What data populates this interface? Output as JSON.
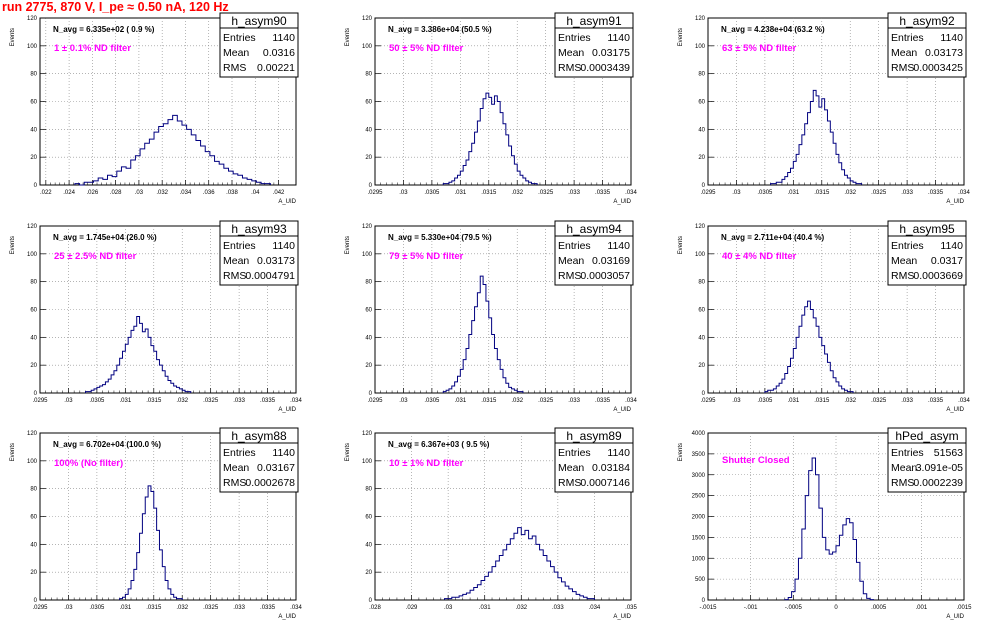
{
  "title": "run 2775,   870 V, I_pe ≈ 0.50 nA, 120 Hz",
  "colors": {
    "title": "#ff0000",
    "histogram": "#000080",
    "filter_text": "#ff00ff",
    "grid": "#888888"
  },
  "stat_labels": {
    "entries": "Entries",
    "mean": "Mean",
    "rms": "RMS"
  },
  "y_axis_title": "Events",
  "x_axis_title": "A_UID",
  "chart_data": [
    {
      "type": "histogram",
      "name": "h_asym90",
      "navg": "N_avg = 6.335e+02 ( 0.9 %)",
      "filter": "1 ± 0.1% ND filter",
      "entries": "1140",
      "mean": "0.0316",
      "rms": "0.00221",
      "xlim": [
        0.0215,
        0.0435
      ],
      "ylim": [
        0,
        120
      ],
      "xticks": [
        0.022,
        0.024,
        0.026,
        0.028,
        0.03,
        0.032,
        0.034,
        0.036,
        0.038,
        0.04,
        0.042
      ],
      "yticks": [
        0,
        20,
        40,
        60,
        80,
        100,
        120
      ],
      "bins": {
        "start": 0.0245,
        "width": 0.0004,
        "counts": [
          1,
          0,
          2,
          2,
          3,
          5,
          4,
          7,
          6,
          10,
          13,
          12,
          18,
          21,
          26,
          30,
          33,
          38,
          42,
          44,
          47,
          50,
          46,
          43,
          40,
          36,
          32,
          28,
          24,
          21,
          17,
          15,
          12,
          10,
          8,
          7,
          5,
          4,
          3,
          2,
          1,
          1
        ]
      }
    },
    {
      "type": "histogram",
      "name": "h_asym91",
      "navg": "N_avg = 3.386e+04 (50.5 %)",
      "filter": "50 ± 5% ND filter",
      "entries": "1140",
      "mean": "0.03175",
      "rms": "0.0003439",
      "xlim": [
        0.0295,
        0.034
      ],
      "ylim": [
        0,
        120
      ],
      "xticks": [
        0.0295,
        0.03,
        0.0305,
        0.031,
        0.0315,
        0.032,
        0.0325,
        0.033,
        0.0335,
        0.034
      ],
      "yticks": [
        0,
        20,
        40,
        60,
        80,
        100,
        120
      ],
      "bins": {
        "start": 0.0307,
        "width": 5e-05,
        "counts": [
          1,
          1,
          2,
          3,
          5,
          7,
          10,
          14,
          18,
          24,
          30,
          38,
          46,
          55,
          62,
          66,
          63,
          58,
          64,
          60,
          52,
          44,
          36,
          28,
          21,
          15,
          10,
          7,
          5,
          3,
          2,
          1,
          1
        ]
      }
    },
    {
      "type": "histogram",
      "name": "h_asym92",
      "navg": "N_avg = 4.238e+04 (63.2 %)",
      "filter": "63 ± 5% ND filter",
      "entries": "1140",
      "mean": "0.03173",
      "rms": "0.0003425",
      "xlim": [
        0.0295,
        0.034
      ],
      "ylim": [
        0,
        120
      ],
      "xticks": [
        0.0295,
        0.03,
        0.0305,
        0.031,
        0.0315,
        0.032,
        0.0325,
        0.033,
        0.0335,
        0.034
      ],
      "yticks": [
        0,
        20,
        40,
        60,
        80,
        100,
        120
      ],
      "bins": {
        "start": 0.0306,
        "width": 5e-05,
        "counts": [
          1,
          1,
          2,
          2,
          4,
          6,
          9,
          12,
          17,
          22,
          29,
          36,
          44,
          52,
          60,
          68,
          64,
          56,
          62,
          54,
          46,
          38,
          30,
          22,
          16,
          11,
          7,
          5,
          3,
          2,
          1,
          1
        ]
      }
    },
    {
      "type": "histogram",
      "name": "h_asym93",
      "navg": "N_avg = 1.745e+04 (26.0 %)",
      "filter": "25 ± 2.5% ND filter",
      "entries": "1140",
      "mean": "0.03173",
      "rms": "0.0004791",
      "xlim": [
        0.0295,
        0.034
      ],
      "ylim": [
        0,
        120
      ],
      "xticks": [
        0.0295,
        0.03,
        0.0305,
        0.031,
        0.0315,
        0.032,
        0.0325,
        0.033,
        0.0335,
        0.034
      ],
      "yticks": [
        0,
        20,
        40,
        60,
        80,
        100,
        120
      ],
      "bins": {
        "start": 0.0303,
        "width": 5e-05,
        "counts": [
          1,
          1,
          2,
          3,
          4,
          5,
          6,
          8,
          10,
          13,
          16,
          20,
          25,
          30,
          35,
          40,
          45,
          48,
          55,
          50,
          44,
          46,
          40,
          34,
          30,
          24,
          20,
          16,
          12,
          9,
          7,
          5,
          4,
          3,
          2,
          1,
          1
        ]
      }
    },
    {
      "type": "histogram",
      "name": "h_asym94",
      "navg": "N_avg = 5.330e+04 (79.5 %)",
      "filter": "79 ± 5% ND filter",
      "entries": "1140",
      "mean": "0.03169",
      "rms": "0.0003057",
      "xlim": [
        0.0295,
        0.034
      ],
      "ylim": [
        0,
        120
      ],
      "xticks": [
        0.0295,
        0.03,
        0.0305,
        0.031,
        0.0315,
        0.032,
        0.0325,
        0.033,
        0.0335,
        0.034
      ],
      "yticks": [
        0,
        20,
        40,
        60,
        80,
        100,
        120
      ],
      "bins": {
        "start": 0.0307,
        "width": 5e-05,
        "counts": [
          1,
          2,
          3,
          5,
          8,
          12,
          17,
          24,
          32,
          42,
          52,
          62,
          72,
          84,
          78,
          66,
          54,
          42,
          32,
          24,
          17,
          11,
          7,
          4,
          3,
          2,
          1,
          1
        ]
      }
    },
    {
      "type": "histogram",
      "name": "h_asym95",
      "navg": "N_avg = 2.711e+04 (40.4 %)",
      "filter": "40 ± 4% ND filter",
      "entries": "1140",
      "mean": "0.0317",
      "rms": "0.0003669",
      "xlim": [
        0.0295,
        0.034
      ],
      "ylim": [
        0,
        120
      ],
      "xticks": [
        0.0295,
        0.03,
        0.0305,
        0.031,
        0.0315,
        0.032,
        0.0325,
        0.033,
        0.0335,
        0.034
      ],
      "yticks": [
        0,
        20,
        40,
        60,
        80,
        100,
        120
      ],
      "bins": {
        "start": 0.0305,
        "width": 5e-05,
        "counts": [
          1,
          2,
          2,
          3,
          5,
          7,
          10,
          14,
          19,
          25,
          32,
          40,
          48,
          56,
          62,
          66,
          60,
          54,
          48,
          40,
          34,
          28,
          22,
          16,
          11,
          8,
          5,
          3,
          2,
          1,
          1
        ]
      }
    },
    {
      "type": "histogram",
      "name": "h_asym88",
      "navg": "N_avg = 6.702e+04 (100.0 %)",
      "filter": "100% (No filter)",
      "entries": "1140",
      "mean": "0.03167",
      "rms": "0.0002678",
      "xlim": [
        0.0295,
        0.034
      ],
      "ylim": [
        0,
        120
      ],
      "xticks": [
        0.0295,
        0.03,
        0.0305,
        0.031,
        0.0315,
        0.032,
        0.0325,
        0.033,
        0.0335,
        0.034
      ],
      "yticks": [
        0,
        20,
        40,
        60,
        80,
        100,
        120
      ],
      "bins": {
        "start": 0.0309,
        "width": 5e-05,
        "counts": [
          1,
          2,
          4,
          8,
          14,
          22,
          34,
          48,
          62,
          74,
          82,
          78,
          66,
          50,
          36,
          24,
          14,
          8,
          4,
          2,
          1,
          1
        ]
      }
    },
    {
      "type": "histogram",
      "name": "h_asym89",
      "navg": "N_avg = 6.367e+03 ( 9.5 %)",
      "filter": "10 ± 1% ND filter",
      "entries": "1140",
      "mean": "0.03184",
      "rms": "0.0007146",
      "xlim": [
        0.028,
        0.035
      ],
      "ylim": [
        0,
        120
      ],
      "xticks": [
        0.028,
        0.029,
        0.03,
        0.031,
        0.032,
        0.033,
        0.034,
        0.035
      ],
      "yticks": [
        0,
        20,
        40,
        60,
        80,
        100,
        120
      ],
      "bins": {
        "start": 0.0299,
        "width": 0.0001,
        "counts": [
          1,
          1,
          2,
          2,
          3,
          4,
          5,
          7,
          9,
          11,
          14,
          17,
          20,
          24,
          28,
          32,
          36,
          40,
          44,
          48,
          52,
          47,
          50,
          44,
          46,
          40,
          36,
          32,
          28,
          24,
          20,
          16,
          13,
          10,
          8,
          6,
          4,
          3,
          2,
          1,
          1
        ]
      }
    },
    {
      "type": "histogram",
      "name": "hPed_asym",
      "navg": "",
      "filter": "Shutter Closed",
      "entries": "51563",
      "mean": "3.091e-05",
      "rms": "0.0002239",
      "xlim": [
        -0.0015,
        0.0015
      ],
      "ylim": [
        0,
        4000
      ],
      "xticks": [
        -0.0015,
        -0.001,
        -0.0005,
        0,
        0.0005,
        0.001,
        0.0015
      ],
      "yticks": [
        0,
        500,
        1000,
        1500,
        2000,
        2500,
        3000,
        3500,
        4000
      ],
      "bins": {
        "start": -0.0006,
        "width": 4e-05,
        "counts": [
          10,
          60,
          200,
          500,
          1000,
          1700,
          2500,
          3100,
          3400,
          3000,
          2200,
          1500,
          1200,
          1100,
          1150,
          1300,
          1550,
          1800,
          1950,
          1850,
          1450,
          900,
          450,
          150,
          40,
          10
        ]
      }
    }
  ]
}
